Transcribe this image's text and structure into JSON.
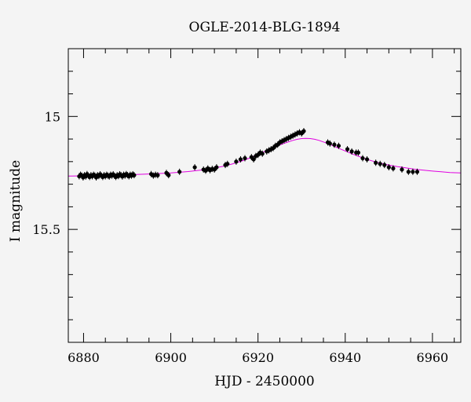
{
  "chart_data": {
    "type": "scatter",
    "title": "OGLE-2014-BLG-1894",
    "xlabel": "HJD - 2450000",
    "ylabel": "I magnitude",
    "xlim": [
      6876.5,
      6966.5
    ],
    "ylim": [
      16.0,
      14.7
    ],
    "y_inverted": true,
    "x_major_ticks": [
      6880,
      6900,
      6920,
      6940,
      6960
    ],
    "x_tick_labels": [
      "6880",
      "6900",
      "6920",
      "6940",
      "6960"
    ],
    "y_major_ticks": [
      15.0,
      15.5
    ],
    "y_tick_labels": [
      "15",
      "15.5"
    ],
    "grid": false,
    "colors": {
      "points": "#000000",
      "model": "#e000e0",
      "background": "#f4f4f4"
    },
    "series": [
      {
        "type": "scatter",
        "x": [
          6879.0,
          6879.3,
          6879.6,
          6879.9,
          6880.2,
          6880.5,
          6880.8,
          6881.1,
          6881.4,
          6881.7,
          6882.0,
          6882.3,
          6882.6,
          6882.9,
          6883.2,
          6883.5,
          6883.8,
          6884.1,
          6884.4,
          6884.7,
          6885.0,
          6885.3,
          6885.6,
          6885.9,
          6886.2,
          6886.5,
          6886.8,
          6887.1,
          6887.4,
          6887.7,
          6888.0,
          6888.3,
          6888.6,
          6888.9,
          6889.2,
          6889.5,
          6889.8,
          6890.1,
          6890.4,
          6890.7,
          6891.0,
          6891.3,
          6891.6,
          6895.5,
          6896.0,
          6896.5,
          6897.0,
          6899.0,
          6899.5,
          6902.0,
          6905.5,
          6907.5,
          6908.0,
          6908.5,
          6909.0,
          6909.5,
          6910.0,
          6910.5,
          6912.5,
          6913.0,
          6915.0,
          6916.0,
          6917.0,
          6918.5,
          6919.0,
          6919.5,
          6920.0,
          6920.5,
          6921.0,
          6922.0,
          6922.5,
          6923.0,
          6923.5,
          6924.0,
          6924.5,
          6925.0,
          6925.5,
          6926.0,
          6926.5,
          6927.0,
          6927.5,
          6928.0,
          6928.5,
          6929.0,
          6929.5,
          6930.0,
          6930.5,
          6936.0,
          6936.5,
          6937.5,
          6938.5,
          6940.5,
          6941.5,
          6942.5,
          6943.0,
          6944.0,
          6945.0,
          6947.0,
          6948.0,
          6949.0,
          6950.0,
          6951.0,
          6953.0,
          6954.5,
          6955.5,
          6956.5
        ],
        "y": [
          15.265,
          15.258,
          15.262,
          15.27,
          15.26,
          15.266,
          15.255,
          15.262,
          15.268,
          15.26,
          15.265,
          15.258,
          15.262,
          15.27,
          15.26,
          15.264,
          15.256,
          15.262,
          15.268,
          15.26,
          15.265,
          15.258,
          15.262,
          15.266,
          15.258,
          15.262,
          15.256,
          15.263,
          15.268,
          15.26,
          15.264,
          15.256,
          15.26,
          15.266,
          15.258,
          15.262,
          15.255,
          15.26,
          15.265,
          15.258,
          15.262,
          15.256,
          15.26,
          15.255,
          15.262,
          15.258,
          15.26,
          15.25,
          15.26,
          15.245,
          15.225,
          15.235,
          15.24,
          15.23,
          15.238,
          15.232,
          15.235,
          15.225,
          15.215,
          15.21,
          15.2,
          15.19,
          15.185,
          15.18,
          15.19,
          15.175,
          15.17,
          15.16,
          15.165,
          15.155,
          15.15,
          15.145,
          15.14,
          15.13,
          15.125,
          15.115,
          15.11,
          15.105,
          15.1,
          15.095,
          15.09,
          15.085,
          15.08,
          15.075,
          15.07,
          15.075,
          15.065,
          15.115,
          15.12,
          15.125,
          15.13,
          15.145,
          15.155,
          15.16,
          15.16,
          15.185,
          15.19,
          15.205,
          15.21,
          15.215,
          15.225,
          15.23,
          15.235,
          15.245,
          15.245,
          15.245
        ]
      },
      {
        "type": "line",
        "x": [
          6876.5,
          6880,
          6884,
          6888,
          6892,
          6896,
          6900,
          6904,
          6908,
          6912,
          6914,
          6916,
          6918,
          6920,
          6922,
          6924,
          6926,
          6928,
          6929,
          6930,
          6931,
          6932,
          6933,
          6934,
          6935,
          6936,
          6938,
          6940,
          6942,
          6944,
          6946,
          6948,
          6950,
          6952,
          6954,
          6956,
          6958,
          6960,
          6962,
          6964,
          6966.5
        ],
        "y": [
          15.264,
          15.263,
          15.261,
          15.259,
          15.257,
          15.254,
          15.25,
          15.244,
          15.235,
          15.221,
          15.211,
          15.199,
          15.185,
          15.168,
          15.151,
          15.134,
          15.119,
          15.106,
          15.101,
          15.098,
          15.097,
          15.098,
          15.101,
          15.106,
          15.113,
          15.12,
          15.137,
          15.153,
          15.169,
          15.183,
          15.196,
          15.206,
          15.215,
          15.222,
          15.228,
          15.234,
          15.238,
          15.242,
          15.245,
          15.248,
          15.25
        ]
      }
    ]
  }
}
